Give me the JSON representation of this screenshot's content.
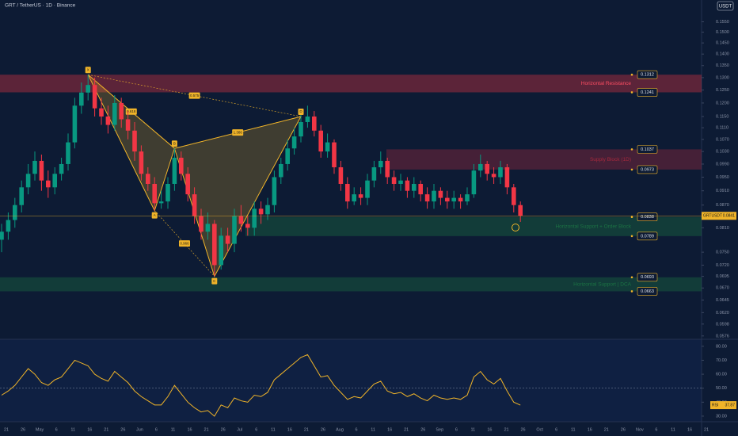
{
  "header": {
    "title": "GRT / TetherUS · 1D · Binance",
    "currency": "USDT"
  },
  "chart_data": [
    {
      "type": "candlestick",
      "symbol_label": "GRTUSDT",
      "last_price": 0.0841,
      "log_scale": true,
      "ylim": [
        0.057,
        0.166
      ],
      "yticks": [
        {
          "value": 0.155,
          "label": "0.1550"
        },
        {
          "value": 0.15,
          "label": "0.1500"
        },
        {
          "value": 0.145,
          "label": "0.1450"
        },
        {
          "value": 0.14,
          "label": "0.1400"
        },
        {
          "value": 0.135,
          "label": "0.1350"
        },
        {
          "value": 0.13,
          "label": "0.1300"
        },
        {
          "value": 0.125,
          "label": "0.1250"
        },
        {
          "value": 0.12,
          "label": "0.1200"
        },
        {
          "value": 0.115,
          "label": "0.1150"
        },
        {
          "value": 0.111,
          "label": "0.1110"
        },
        {
          "value": 0.107,
          "label": "0.1070"
        },
        {
          "value": 0.103,
          "label": "0.1030"
        },
        {
          "value": 0.099,
          "label": "0.0990"
        },
        {
          "value": 0.095,
          "label": "0.0950"
        },
        {
          "value": 0.091,
          "label": "0.0910"
        },
        {
          "value": 0.087,
          "label": "0.0870"
        },
        {
          "value": 0.081,
          "label": "0.0810"
        },
        {
          "value": 0.075,
          "label": "0.0750"
        },
        {
          "value": 0.072,
          "label": "0.0720"
        },
        0.0695,
        {
          "value": 0.067,
          "label": "0.0670"
        },
        0.0645,
        {
          "value": 0.062,
          "label": "0.0620"
        },
        0.0598,
        0.0576
      ],
      "up_color": "#089981",
      "down_color": "#f23645",
      "open": [
        0.078,
        0.08,
        0.083,
        0.087,
        0.092,
        0.096,
        0.1,
        0.094,
        0.092,
        0.096,
        0.099,
        0.106,
        0.119,
        0.124,
        0.127,
        0.118,
        0.115,
        0.112,
        0.12,
        0.114,
        0.11,
        0.103,
        0.096,
        0.093,
        0.0875,
        0.088,
        0.093,
        0.101,
        0.096,
        0.09,
        0.084,
        0.08,
        0.082,
        0.072,
        0.079,
        0.077,
        0.084,
        0.082,
        0.081,
        0.086,
        0.0845,
        0.087,
        0.095,
        0.099,
        0.104,
        0.108,
        0.113,
        0.115,
        0.11,
        0.103,
        0.106,
        0.098,
        0.093,
        0.088,
        0.09,
        0.089,
        0.094,
        0.098,
        0.1,
        0.095,
        0.093,
        0.094,
        0.091,
        0.093,
        0.09,
        0.088,
        0.091,
        0.089,
        0.088,
        0.089,
        0.088,
        0.09,
        0.097,
        0.099,
        0.096,
        0.095,
        0.098,
        0.092,
        0.087
      ],
      "high": [
        0.082,
        0.085,
        0.089,
        0.094,
        0.099,
        0.103,
        0.102,
        0.097,
        0.098,
        0.101,
        0.109,
        0.122,
        0.128,
        0.1312,
        0.13,
        0.122,
        0.119,
        0.123,
        0.122,
        0.117,
        0.113,
        0.105,
        0.098,
        0.095,
        0.091,
        0.095,
        0.104,
        0.103,
        0.098,
        0.092,
        0.086,
        0.085,
        0.083,
        0.081,
        0.081,
        0.086,
        0.087,
        0.084,
        0.088,
        0.088,
        0.089,
        0.097,
        0.101,
        0.107,
        0.111,
        0.116,
        0.119,
        0.117,
        0.112,
        0.109,
        0.107,
        0.1,
        0.095,
        0.092,
        0.092,
        0.096,
        0.1,
        0.103,
        0.101,
        0.097,
        0.096,
        0.095,
        0.095,
        0.094,
        0.092,
        0.093,
        0.092,
        0.091,
        0.091,
        0.09,
        0.092,
        0.099,
        0.102,
        0.1,
        0.098,
        0.1,
        0.099,
        0.093,
        0.088
      ],
      "low": [
        0.075,
        0.078,
        0.081,
        0.085,
        0.09,
        0.094,
        0.091,
        0.089,
        0.09,
        0.094,
        0.097,
        0.104,
        0.116,
        0.121,
        0.115,
        0.112,
        0.109,
        0.11,
        0.111,
        0.107,
        0.1,
        0.094,
        0.091,
        0.0855,
        0.086,
        0.086,
        0.091,
        0.094,
        0.088,
        0.082,
        0.078,
        0.078,
        0.0695,
        0.071,
        0.075,
        0.075,
        0.08,
        0.079,
        0.079,
        0.082,
        0.083,
        0.085,
        0.093,
        0.097,
        0.102,
        0.106,
        0.111,
        0.108,
        0.101,
        0.101,
        0.096,
        0.091,
        0.086,
        0.087,
        0.087,
        0.087,
        0.092,
        0.096,
        0.093,
        0.091,
        0.091,
        0.089,
        0.089,
        0.088,
        0.086,
        0.086,
        0.087,
        0.086,
        0.086,
        0.086,
        0.087,
        0.089,
        0.095,
        0.094,
        0.093,
        0.093,
        0.09,
        0.085,
        0.0825
      ],
      "close": [
        0.08,
        0.083,
        0.087,
        0.092,
        0.096,
        0.1,
        0.094,
        0.092,
        0.096,
        0.099,
        0.106,
        0.119,
        0.124,
        0.127,
        0.118,
        0.115,
        0.112,
        0.12,
        0.114,
        0.11,
        0.103,
        0.096,
        0.093,
        0.0875,
        0.088,
        0.093,
        0.101,
        0.096,
        0.09,
        0.084,
        0.08,
        0.082,
        0.072,
        0.079,
        0.077,
        0.084,
        0.082,
        0.081,
        0.086,
        0.0845,
        0.087,
        0.095,
        0.099,
        0.104,
        0.108,
        0.113,
        0.115,
        0.11,
        0.103,
        0.106,
        0.098,
        0.093,
        0.088,
        0.09,
        0.089,
        0.094,
        0.098,
        0.1,
        0.095,
        0.093,
        0.094,
        0.091,
        0.093,
        0.09,
        0.088,
        0.091,
        0.089,
        0.088,
        0.089,
        0.088,
        0.09,
        0.097,
        0.099,
        0.096,
        0.095,
        0.098,
        0.092,
        0.087,
        0.0841
      ],
      "zones": [
        {
          "name": "Horizontal Resistance",
          "low": 0.1241,
          "high": 0.1312,
          "color": "#f23645"
        },
        {
          "name": "Supply Block (1D)",
          "low": 0.0973,
          "high": 0.1037,
          "color": "#b02a3e"
        },
        {
          "name": "Horizontal Support + Order Block",
          "low": 0.0789,
          "high": 0.0838,
          "color": "#1d7a45"
        },
        {
          "name": "Horizontal Support | DCA",
          "low": 0.0663,
          "high": 0.0693,
          "color": "#1d7a45"
        }
      ],
      "pattern": {
        "color": "#f0b429",
        "points": [
          {
            "label": "X",
            "candle": 13,
            "price": 0.1312
          },
          {
            "label": "A",
            "candle": 23,
            "price": 0.0855
          },
          {
            "label": "B",
            "candle": 26,
            "price": 0.104
          },
          {
            "label": "C",
            "candle": 32,
            "price": 0.0695
          },
          {
            "label": "D",
            "candle": 45,
            "price": 0.115
          }
        ],
        "ratios": [
          {
            "between": [
              0,
              2
            ],
            "label": "0.618"
          },
          {
            "between": [
              0,
              4
            ],
            "label": "0.575"
          },
          {
            "between": [
              2,
              4
            ],
            "label": "1.386"
          },
          {
            "between": [
              1,
              3
            ],
            "label": "0.966"
          }
        ]
      }
    },
    {
      "type": "line",
      "title": "RSI",
      "color": "#f0b429",
      "ylim": [
        26,
        85
      ],
      "midline": 50,
      "yticks": [
        {
          "value": 80,
          "label": "80.00"
        },
        {
          "value": 70,
          "label": "70.00"
        },
        {
          "value": 60,
          "label": "60.00"
        },
        {
          "value": 50,
          "label": "50.00"
        },
        {
          "value": 40,
          "label": "40.00"
        },
        {
          "value": 30,
          "label": "30.00"
        }
      ],
      "values": [
        45,
        48,
        52,
        58,
        64,
        60,
        54,
        52,
        56,
        58,
        64,
        70,
        68,
        66,
        60,
        57,
        55,
        62,
        58,
        54,
        48,
        44,
        41,
        38,
        38,
        44,
        52,
        46,
        40,
        36,
        33,
        34,
        30,
        38,
        36,
        43,
        41,
        40,
        45,
        44,
        47,
        56,
        60,
        64,
        68,
        72,
        74,
        66,
        58,
        59,
        52,
        47,
        42,
        44,
        43,
        48,
        53,
        55,
        48,
        46,
        47,
        44,
        46,
        43,
        41,
        45,
        43,
        42,
        43,
        42,
        45,
        58,
        62,
        56,
        53,
        57,
        48,
        40,
        37.87
      ]
    }
  ],
  "x_labels": [
    "21",
    "26",
    "May",
    "6",
    "11",
    "16",
    "21",
    "26",
    "Jun",
    "6",
    "11",
    "16",
    "21",
    "26",
    "Jul",
    "6",
    "11",
    "16",
    "21",
    "26",
    "Aug",
    "6",
    "11",
    "16",
    "21",
    "26",
    "Sep",
    "6",
    "11",
    "16",
    "21",
    "26",
    "Oct",
    "6",
    "11",
    "16",
    "21",
    "26",
    "Nov",
    "6",
    "11",
    "16",
    "21"
  ]
}
